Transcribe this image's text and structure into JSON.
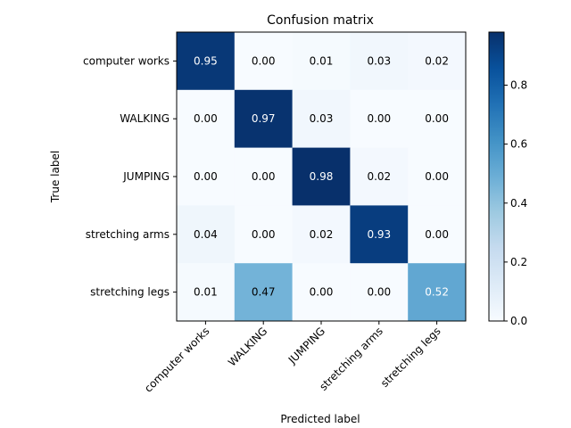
{
  "chart_data": {
    "type": "heatmap",
    "title": "Confusion matrix",
    "xlabel": "Predicted label",
    "ylabel": "True label",
    "x_categories": [
      "computer works",
      "WALKING",
      "JUMPING",
      "stretching arms",
      "stretching legs"
    ],
    "y_categories": [
      "computer works",
      "WALKING",
      "JUMPING",
      "stretching arms",
      "stretching legs"
    ],
    "values": [
      [
        0.95,
        0.0,
        0.01,
        0.03,
        0.02
      ],
      [
        0.0,
        0.97,
        0.03,
        0.0,
        0.0
      ],
      [
        0.0,
        0.0,
        0.98,
        0.02,
        0.0
      ],
      [
        0.04,
        0.0,
        0.02,
        0.93,
        0.0
      ],
      [
        0.01,
        0.47,
        0.0,
        0.0,
        0.52
      ]
    ],
    "value_labels": [
      [
        "0.95",
        "0.00",
        "0.01",
        "0.03",
        "0.02"
      ],
      [
        "0.00",
        "0.97",
        "0.03",
        "0.00",
        "0.00"
      ],
      [
        "0.00",
        "0.00",
        "0.98",
        "0.02",
        "0.00"
      ],
      [
        "0.04",
        "0.00",
        "0.02",
        "0.93",
        "0.00"
      ],
      [
        "0.01",
        "0.47",
        "0.00",
        "0.00",
        "0.52"
      ]
    ],
    "colormap": "Blues",
    "colorbar": {
      "range": [
        0.0,
        0.98
      ],
      "ticks": [
        0.0,
        0.2,
        0.4,
        0.6,
        0.8
      ],
      "tick_labels": [
        "0.0",
        "0.2",
        "0.4",
        "0.6",
        "0.8"
      ]
    },
    "grid": false,
    "legend": "colorbar-right"
  }
}
